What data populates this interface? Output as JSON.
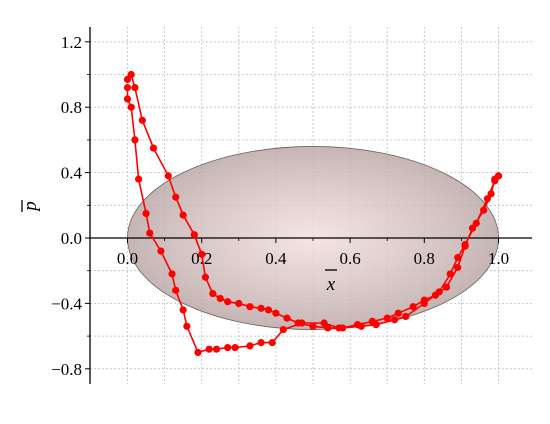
{
  "chart_data": {
    "type": "scatter",
    "title": "",
    "xlabel": "x",
    "ylabel": "p",
    "xlim": [
      -0.1,
      1.1
    ],
    "ylim": [
      -0.9,
      1.3
    ],
    "grid": true,
    "x_ticks": [
      0.0,
      0.2,
      0.4,
      0.6,
      0.8,
      1.0
    ],
    "x_tick_labels": [
      "0.0",
      "0.2",
      "0.4",
      "0.6",
      "0.8",
      "1.0"
    ],
    "y_ticks": [
      1.2,
      0.8,
      0.4,
      0.0,
      -0.4,
      -0.8
    ],
    "y_tick_labels": [
      "1.2",
      "0.8",
      "0.4",
      "0.0",
      "−0.4",
      "−0.8"
    ],
    "ellipse": {
      "cx": 0.5,
      "cy": 0.0,
      "rx": 0.5,
      "ry": 0.56,
      "color": "#b3a1a1"
    },
    "series": [
      {
        "color": "#ff0000",
        "points": [
          [
            0.0,
            0.97
          ],
          [
            0.01,
            1.0
          ],
          [
            0.02,
            0.92
          ],
          [
            0.04,
            0.72
          ],
          [
            0.07,
            0.55
          ],
          [
            0.11,
            0.38
          ],
          [
            0.13,
            0.25
          ],
          [
            0.15,
            0.14
          ],
          [
            0.18,
            0.02
          ],
          [
            0.2,
            -0.1
          ],
          [
            0.21,
            -0.24
          ],
          [
            0.23,
            -0.34
          ],
          [
            0.25,
            -0.37
          ],
          [
            0.27,
            -0.39
          ],
          [
            0.3,
            -0.4
          ],
          [
            0.33,
            -0.42
          ],
          [
            0.36,
            -0.43
          ],
          [
            0.38,
            -0.44
          ],
          [
            0.4,
            -0.46
          ],
          [
            0.43,
            -0.49
          ],
          [
            0.46,
            -0.52
          ],
          [
            0.5,
            -0.54
          ],
          [
            0.54,
            -0.55
          ],
          [
            0.58,
            -0.55
          ],
          [
            0.62,
            -0.53
          ],
          [
            0.66,
            -0.51
          ],
          [
            0.7,
            -0.49
          ],
          [
            0.73,
            -0.46
          ],
          [
            0.77,
            -0.42
          ],
          [
            0.8,
            -0.38
          ],
          [
            0.83,
            -0.35
          ],
          [
            0.86,
            -0.3
          ],
          [
            0.89,
            -0.18
          ],
          [
            0.91,
            -0.05
          ],
          [
            0.93,
            0.06
          ],
          [
            0.96,
            0.17
          ],
          [
            0.98,
            0.27
          ],
          [
            0.99,
            0.36
          ],
          [
            1.0,
            0.38
          ]
        ]
      },
      {
        "color": "#ff0000",
        "points": [
          [
            1.0,
            0.38
          ],
          [
            0.99,
            0.35
          ],
          [
            0.97,
            0.24
          ],
          [
            0.94,
            0.09
          ],
          [
            0.91,
            -0.04
          ],
          [
            0.89,
            -0.12
          ],
          [
            0.87,
            -0.22
          ],
          [
            0.84,
            -0.33
          ],
          [
            0.8,
            -0.4
          ],
          [
            0.75,
            -0.48
          ],
          [
            0.72,
            -0.5
          ],
          [
            0.67,
            -0.53
          ],
          [
            0.63,
            -0.54
          ],
          [
            0.57,
            -0.55
          ],
          [
            0.53,
            -0.52
          ],
          [
            0.47,
            -0.52
          ],
          [
            0.42,
            -0.56
          ],
          [
            0.39,
            -0.64
          ],
          [
            0.36,
            -0.64
          ],
          [
            0.33,
            -0.66
          ],
          [
            0.29,
            -0.67
          ],
          [
            0.27,
            -0.67
          ],
          [
            0.24,
            -0.68
          ],
          [
            0.22,
            -0.68
          ],
          [
            0.19,
            -0.7
          ],
          [
            0.16,
            -0.54
          ],
          [
            0.15,
            -0.44
          ],
          [
            0.13,
            -0.32
          ],
          [
            0.12,
            -0.22
          ],
          [
            0.09,
            -0.08
          ],
          [
            0.06,
            0.03
          ],
          [
            0.05,
            0.15
          ],
          [
            0.03,
            0.36
          ],
          [
            0.02,
            0.6
          ],
          [
            0.01,
            0.8
          ],
          [
            0.0,
            0.85
          ],
          [
            0.0,
            0.92
          ]
        ]
      }
    ]
  }
}
